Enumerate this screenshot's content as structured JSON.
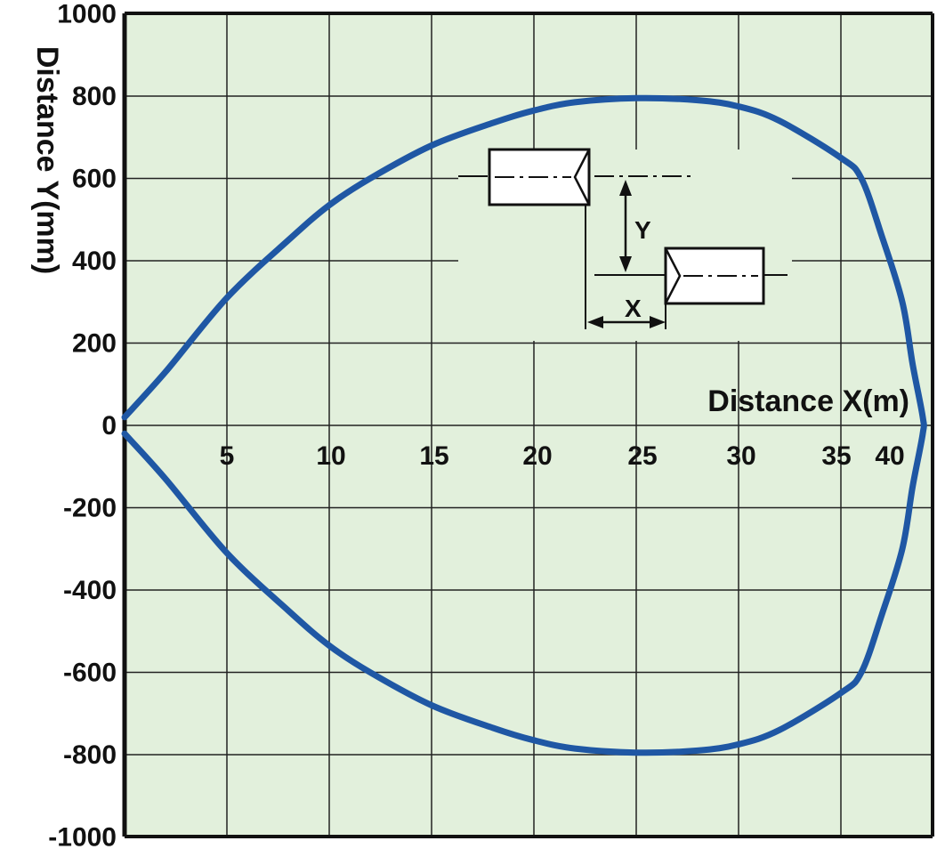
{
  "chart_data": {
    "type": "line",
    "xlabel": "Distance  X(m)",
    "ylabel": "Distance  Y(mm)",
    "xlim": [
      0,
      39
    ],
    "ylim": [
      -1000,
      1000
    ],
    "x_ticks": [
      "5",
      "10",
      "15",
      "20",
      "25",
      "30",
      "35",
      "40"
    ],
    "y_ticks": [
      "1000",
      "800",
      "600",
      "400",
      "200",
      "0",
      "-200",
      "-400",
      "-600",
      "-800",
      "-1000"
    ],
    "grid": true,
    "background": "#e2f0dc",
    "series_color": "#1f57a4",
    "series": [
      {
        "x": [
          0,
          2,
          5,
          8,
          10,
          12,
          15,
          18,
          20,
          22,
          25,
          28,
          30,
          32,
          35,
          36,
          37,
          38,
          38.5,
          39,
          39,
          38.5,
          38,
          37,
          36,
          35,
          32,
          30,
          28,
          25,
          22,
          20,
          18,
          15,
          12,
          10,
          8,
          5,
          2,
          0
        ],
        "y": [
          20,
          130,
          310,
          450,
          535,
          600,
          680,
          735,
          765,
          785,
          795,
          790,
          775,
          740,
          650,
          600,
          460,
          300,
          150,
          20,
          -20,
          -150,
          -300,
          -460,
          -600,
          -650,
          -740,
          -775,
          -790,
          -795,
          -785,
          -765,
          -735,
          -680,
          -600,
          -535,
          -450,
          -310,
          -130,
          -20
        ]
      }
    ],
    "diagram": {
      "y_label": "Y",
      "x_label": "X"
    }
  }
}
